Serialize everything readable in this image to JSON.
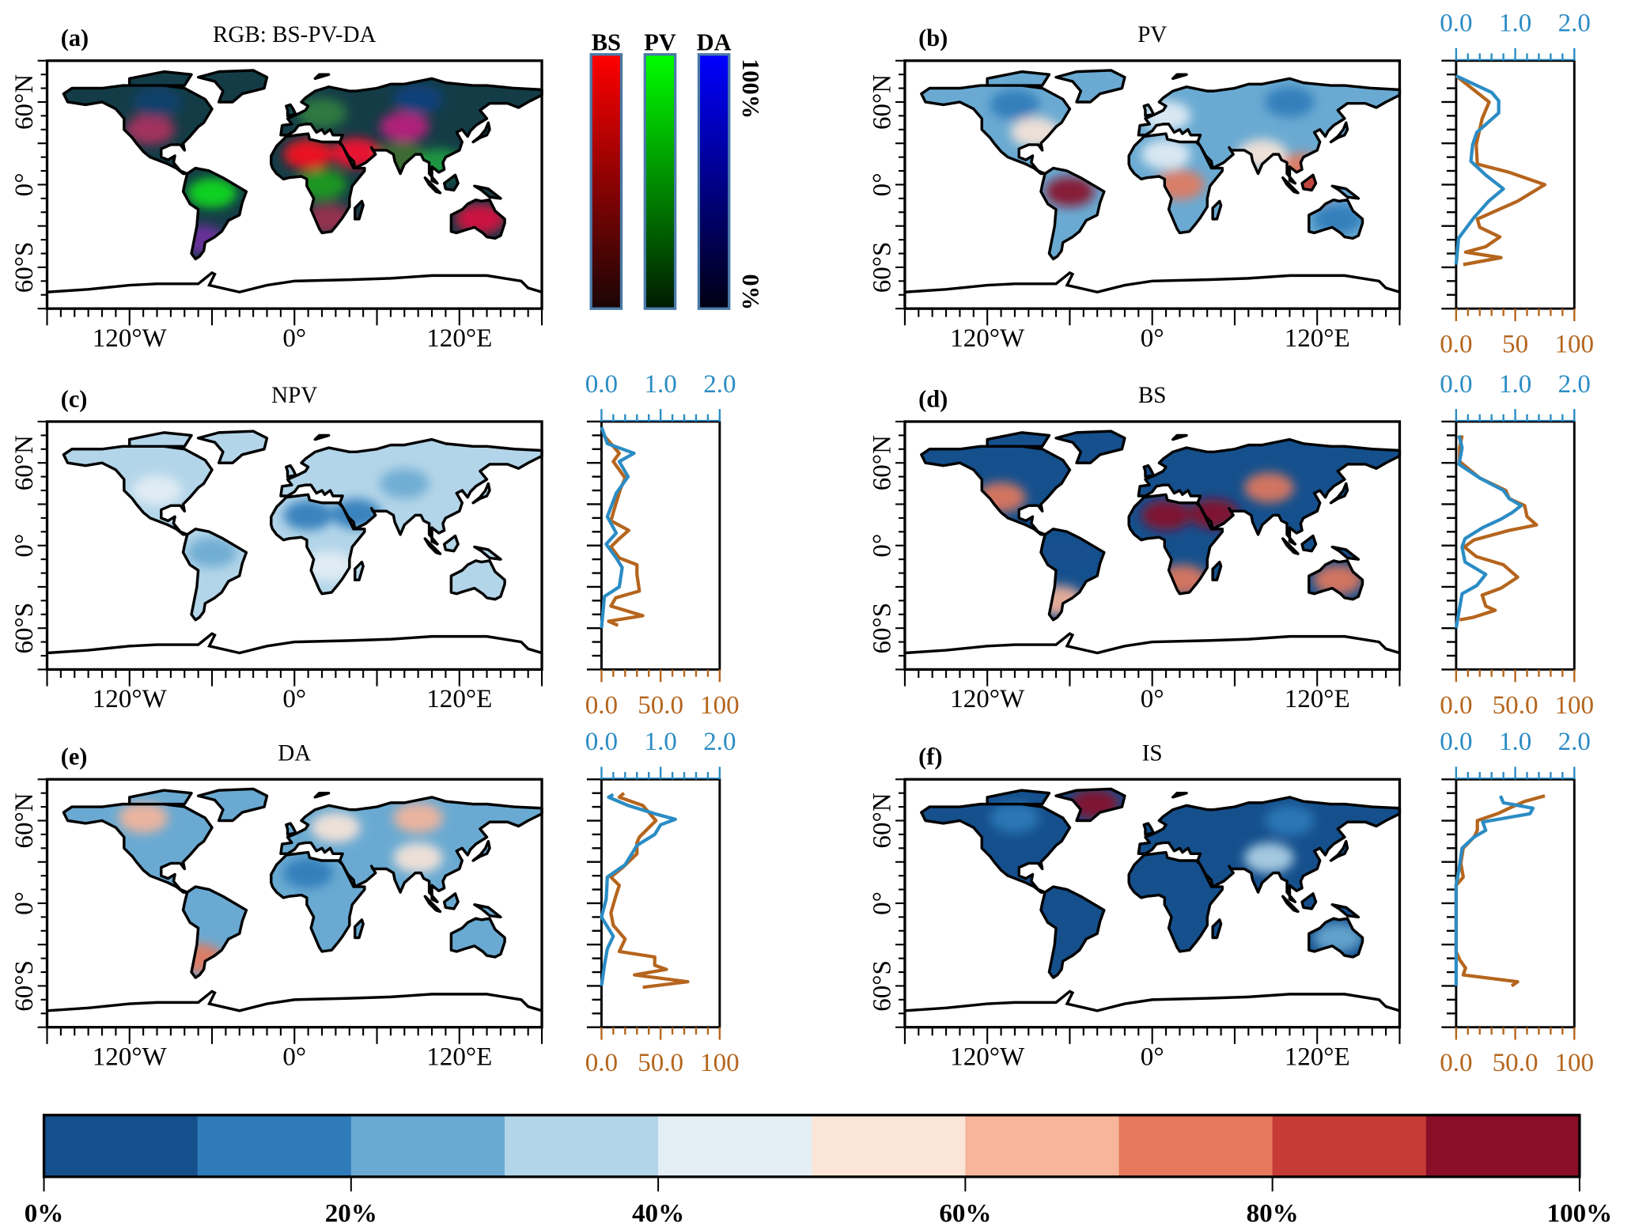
{
  "axis_labels": {
    "lat": [
      "60°N",
      "0°",
      "60°S"
    ],
    "lon": [
      "120°W",
      "0°",
      "120°E"
    ]
  },
  "rgb_legend": {
    "bars": [
      {
        "label": "BS",
        "top": "#ff0000",
        "bottom": "#1a0505"
      },
      {
        "label": "PV",
        "top": "#00ff00",
        "bottom": "#001a00"
      },
      {
        "label": "DA",
        "top": "#0000ff",
        "bottom": "#000012"
      }
    ],
    "max_label": "100%",
    "min_label": "0%",
    "border": "#4a7aa8"
  },
  "colorbar": {
    "colors": [
      "#15508d",
      "#2f7ab9",
      "#6aaad2",
      "#b3d5e9",
      "#e4eef5",
      "#fbe5d8",
      "#f7b59a",
      "#e6795c",
      "#c63b35",
      "#8a0e27"
    ],
    "range": [
      0,
      100
    ],
    "tick_labels": [
      "0%",
      "20%",
      "40%",
      "60%",
      "80%",
      "100%"
    ]
  },
  "panels": [
    {
      "id": "a",
      "label": "(a)",
      "title": "RGB: BS-PV-DA",
      "mode": "rgb",
      "base": "#143c46",
      "hotspots": [
        {
          "lon": 10,
          "lat": 22,
          "color": "#ff1020"
        },
        {
          "lon": 45,
          "lat": 23,
          "color": "#ff1030"
        },
        {
          "lon": 80,
          "lat": 42,
          "color": "#c02080"
        },
        {
          "lon": -60,
          "lat": -6,
          "color": "#10e020"
        },
        {
          "lon": 20,
          "lat": 0,
          "color": "#20a020"
        },
        {
          "lon": 135,
          "lat": -25,
          "color": "#e01040"
        },
        {
          "lon": -105,
          "lat": 40,
          "color": "#b03060"
        },
        {
          "lon": 90,
          "lat": 62,
          "color": "#104080"
        },
        {
          "lon": -100,
          "lat": 60,
          "color": "#104070"
        },
        {
          "lon": 20,
          "lat": 52,
          "color": "#308040"
        },
        {
          "lon": 78,
          "lat": 20,
          "color": "#407030"
        },
        {
          "lon": 105,
          "lat": 15,
          "color": "#20a040"
        },
        {
          "lon": -68,
          "lat": -40,
          "color": "#7030a0"
        },
        {
          "lon": 25,
          "lat": -25,
          "color": "#a03050"
        }
      ]
    },
    {
      "id": "b",
      "label": "(b)",
      "title": "PV",
      "mode": "value",
      "base": 25,
      "hotspots": [
        {
          "lon": -60,
          "lat": -5,
          "value": 95
        },
        {
          "lon": 20,
          "lat": 0,
          "value": 75
        },
        {
          "lon": 108,
          "lat": 12,
          "value": 75
        },
        {
          "lon": 115,
          "lat": -2,
          "value": 85
        },
        {
          "lon": -85,
          "lat": 38,
          "value": 55
        },
        {
          "lon": 10,
          "lat": 50,
          "value": 45
        },
        {
          "lon": 80,
          "lat": 22,
          "value": 55
        },
        {
          "lon": 10,
          "lat": 22,
          "value": 45
        },
        {
          "lon": 100,
          "lat": 60,
          "value": 15
        },
        {
          "lon": 135,
          "lat": -25,
          "value": 10
        },
        {
          "lon": -100,
          "lat": 58,
          "value": 15
        }
      ]
    },
    {
      "id": "c",
      "label": "(c)",
      "title": "NPV",
      "mode": "value",
      "base": 30,
      "hotspots": [
        {
          "lon": 10,
          "lat": 22,
          "value": 10
        },
        {
          "lon": 45,
          "lat": 23,
          "value": 10
        },
        {
          "lon": 135,
          "lat": -25,
          "value": 35
        },
        {
          "lon": -60,
          "lat": -5,
          "value": 25
        },
        {
          "lon": 80,
          "lat": 45,
          "value": 25
        },
        {
          "lon": 25,
          "lat": -15,
          "value": 40
        },
        {
          "lon": -100,
          "lat": 40,
          "value": 45
        }
      ]
    },
    {
      "id": "d",
      "label": "(d)",
      "title": "BS",
      "mode": "value",
      "base": 8,
      "hotspots": [
        {
          "lon": 10,
          "lat": 22,
          "value": 95
        },
        {
          "lon": 45,
          "lat": 23,
          "value": 90
        },
        {
          "lon": 85,
          "lat": 42,
          "value": 75
        },
        {
          "lon": 135,
          "lat": -25,
          "value": 75
        },
        {
          "lon": -110,
          "lat": 35,
          "value": 70
        },
        {
          "lon": -68,
          "lat": -40,
          "value": 60
        },
        {
          "lon": 22,
          "lat": -25,
          "value": 70
        },
        {
          "lon": -60,
          "lat": -5,
          "value": 5
        }
      ]
    },
    {
      "id": "e",
      "label": "(e)",
      "title": "DA",
      "mode": "value",
      "base": 20,
      "hotspots": [
        {
          "lon": -110,
          "lat": 62,
          "value": 65
        },
        {
          "lon": 90,
          "lat": 62,
          "value": 60
        },
        {
          "lon": 30,
          "lat": 55,
          "value": 55
        },
        {
          "lon": -70,
          "lat": -40,
          "value": 70
        },
        {
          "lon": 90,
          "lat": 33,
          "value": 55
        },
        {
          "lon": 10,
          "lat": 22,
          "value": 15
        }
      ]
    },
    {
      "id": "f",
      "label": "(f)",
      "title": "IS",
      "mode": "value",
      "base": 3,
      "hotspots": [
        {
          "lon": -42,
          "lat": 72,
          "value": 95
        },
        {
          "lon": -100,
          "lat": 62,
          "value": 15
        },
        {
          "lon": 100,
          "lat": 60,
          "value": 15
        },
        {
          "lon": 85,
          "lat": 33,
          "value": 30
        },
        {
          "lon": 135,
          "lat": -25,
          "value": 25
        }
      ]
    }
  ],
  "chart_data": [
    {
      "panel": "b",
      "type": "line",
      "ylim": [
        -90,
        90
      ],
      "bottom_axis": {
        "range": [
          0,
          100
        ],
        "tick_labels": [
          "0.0",
          "50",
          "100"
        ],
        "color": "#b5651d"
      },
      "top_axis": {
        "range": [
          0,
          2
        ],
        "tick_labels": [
          "0.0",
          "1.0",
          "2.0"
        ],
        "color": "#2b8cc4"
      },
      "series": [
        {
          "axis": "bottom",
          "color": "#b5651d",
          "lat": [
            79,
            60,
            48,
            29,
            15,
            9,
            0,
            -12,
            -25,
            -31,
            -38,
            -45,
            -49,
            -53,
            -58
          ],
          "values": [
            0,
            28,
            22,
            17,
            18,
            45,
            75,
            52,
            18,
            20,
            37,
            25,
            8,
            38,
            6
          ]
        },
        {
          "axis": "top",
          "color": "#2b8cc4",
          "lat": [
            79,
            67,
            61,
            52,
            38,
            29,
            17,
            7,
            -3,
            -12,
            -24,
            -39,
            -58
          ],
          "values": [
            0,
            0.6,
            0.72,
            0.72,
            0.35,
            0.28,
            0.25,
            0.5,
            0.8,
            0.55,
            0.3,
            0.04,
            0
          ]
        }
      ]
    },
    {
      "panel": "c",
      "type": "line",
      "ylim": [
        -90,
        90
      ],
      "bottom_axis": {
        "range": [
          0,
          100
        ],
        "tick_labels": [
          "0.0",
          "50.0",
          "100"
        ],
        "color": "#b5651d"
      },
      "top_axis": {
        "range": [
          0,
          2
        ],
        "tick_labels": [
          "0.0",
          "1.0",
          "2.0"
        ],
        "color": "#2b8cc4"
      },
      "series": [
        {
          "axis": "bottom",
          "color": "#b5651d",
          "lat": [
            80,
            72,
            67,
            61,
            49,
            41,
            30,
            18,
            11,
            5,
            -1,
            -9,
            -14,
            -21,
            -33,
            -38,
            -44,
            -51,
            -55,
            -58
          ],
          "values": [
            2,
            10,
            15,
            10,
            20,
            16,
            12,
            8,
            23,
            15,
            8,
            15,
            30,
            30,
            32,
            12,
            8,
            35,
            6,
            14
          ]
        },
        {
          "axis": "top",
          "color": "#2b8cc4",
          "lat": [
            86,
            74,
            67,
            61,
            50,
            38,
            21,
            9,
            1,
            -9,
            -16,
            -30,
            -37,
            -60
          ],
          "values": [
            0,
            0.1,
            0.55,
            0.3,
            0.45,
            0.25,
            0.1,
            0.25,
            0.08,
            0.25,
            0.35,
            0.3,
            0.05,
            0
          ]
        }
      ]
    },
    {
      "panel": "d",
      "type": "line",
      "ylim": [
        -90,
        90
      ],
      "bottom_axis": {
        "range": [
          0,
          100
        ],
        "tick_labels": [
          "0.0",
          "50.0",
          "100"
        ],
        "color": "#b5651d"
      },
      "top_axis": {
        "range": [
          0,
          2
        ],
        "tick_labels": [
          "0.0",
          "1.0",
          "2.0"
        ],
        "color": "#2b8cc4"
      },
      "series": [
        {
          "axis": "bottom",
          "color": "#b5651d",
          "lat": [
            80,
            71,
            61,
            49,
            40,
            34,
            29,
            21,
            15,
            11,
            4,
            -1,
            -8,
            -14,
            -23,
            -31,
            -36,
            -44,
            -47,
            -52,
            -54
          ],
          "values": [
            5,
            3,
            3,
            20,
            42,
            45,
            58,
            60,
            68,
            45,
            15,
            7,
            17,
            40,
            52,
            38,
            22,
            25,
            33,
            15,
            3
          ]
        },
        {
          "axis": "top",
          "color": "#2b8cc4",
          "lat": [
            80,
            71,
            59,
            49,
            40,
            34,
            29,
            24,
            19,
            13,
            5,
            -1,
            -12,
            -21,
            -29,
            -35,
            -60
          ],
          "values": [
            0.05,
            0.1,
            0.05,
            0.4,
            0.8,
            0.9,
            1.1,
            0.95,
            0.75,
            0.45,
            0.15,
            0.1,
            0.15,
            0.5,
            0.35,
            0.1,
            0
          ]
        }
      ]
    },
    {
      "panel": "e",
      "type": "line",
      "ylim": [
        -90,
        90
      ],
      "bottom_axis": {
        "range": [
          0,
          100
        ],
        "tick_labels": [
          "0.0",
          "50.0",
          "100"
        ],
        "color": "#b5651d"
      },
      "top_axis": {
        "range": [
          0,
          2
        ],
        "tick_labels": [
          "0.0",
          "1.0",
          "2.0"
        ],
        "color": "#2b8cc4"
      },
      "series": [
        {
          "axis": "bottom",
          "color": "#b5651d",
          "lat": [
            80,
            77,
            71,
            60,
            48,
            44,
            36,
            26,
            19,
            13,
            5,
            -7,
            -16,
            -26,
            -35,
            -39,
            -45,
            -48,
            -52,
            -57,
            -61
          ],
          "values": [
            19,
            15,
            35,
            46,
            32,
            30,
            30,
            18,
            8,
            15,
            12,
            8,
            10,
            20,
            15,
            45,
            45,
            55,
            28,
            73,
            35
          ]
        },
        {
          "axis": "top",
          "color": "#2b8cc4",
          "lat": [
            79,
            77,
            71,
            65,
            61,
            57,
            50,
            42,
            28,
            19,
            3,
            -10,
            -24,
            -33,
            -45,
            -60
          ],
          "values": [
            0.2,
            0.12,
            0.45,
            0.9,
            1.25,
            1.0,
            0.9,
            0.6,
            0.4,
            0.1,
            0.08,
            0,
            0.2,
            0.1,
            0.05,
            0
          ]
        }
      ]
    },
    {
      "panel": "f",
      "type": "line",
      "ylim": [
        -90,
        90
      ],
      "bottom_axis": {
        "range": [
          0,
          100
        ],
        "tick_labels": [
          "0.0",
          "50.0",
          "100"
        ],
        "color": "#b5651d"
      },
      "top_axis": {
        "range": [
          0,
          2
        ],
        "tick_labels": [
          "0.0",
          "1.0",
          "2.0"
        ],
        "color": "#2b8cc4"
      },
      "series": [
        {
          "axis": "bottom",
          "color": "#b5651d",
          "lat": [
            78,
            74,
            69,
            65,
            60,
            53,
            48,
            40,
            29,
            19,
            13,
            -35,
            -41,
            -47,
            -52,
            -57,
            -60
          ],
          "values": [
            75,
            58,
            45,
            35,
            18,
            18,
            15,
            6,
            4,
            6,
            0,
            0,
            3,
            8,
            6,
            52,
            47
          ]
        },
        {
          "axis": "top",
          "color": "#2b8cc4",
          "lat": [
            78,
            73,
            69,
            65,
            59,
            53,
            48,
            40,
            25,
            13,
            -60
          ],
          "values": [
            0.75,
            0.8,
            1.3,
            1.25,
            0.45,
            0.5,
            0.3,
            0.1,
            0.05,
            0,
            0
          ]
        }
      ]
    }
  ]
}
